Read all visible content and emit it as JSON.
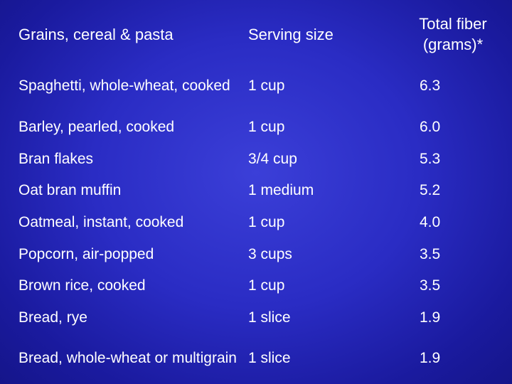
{
  "table": {
    "headers": [
      "Grains, cereal & pasta",
      "Serving size",
      "Total fiber (grams)*"
    ],
    "header_fiber_line1": "Total fiber",
    "header_fiber_line2": "(grams)*",
    "rows": [
      {
        "item": "Spaghetti, whole-wheat, cooked",
        "serving": "1 cup",
        "fiber": "6.3"
      },
      {
        "item": "Barley, pearled, cooked",
        "serving": "1 cup",
        "fiber": "6.0"
      },
      {
        "item": "Bran flakes",
        "serving": "3/4 cup",
        "fiber": "5.3"
      },
      {
        "item": "Oat bran muffin",
        "serving": "1 medium",
        "fiber": "5.2"
      },
      {
        "item": "Oatmeal, instant, cooked",
        "serving": "1 cup",
        "fiber": "4.0"
      },
      {
        "item": "Popcorn, air-popped",
        "serving": "3 cups",
        "fiber": "3.5"
      },
      {
        "item": "Brown rice, cooked",
        "serving": "1 cup",
        "fiber": "3.5"
      },
      {
        "item": "Bread, rye",
        "serving": "1 slice",
        "fiber": "1.9"
      },
      {
        "item": "Bread, whole-wheat or multigrain",
        "serving": "1 slice",
        "fiber": "1.9"
      }
    ]
  },
  "colors": {
    "background": "#2a2cc4",
    "text": "#ffffff"
  }
}
